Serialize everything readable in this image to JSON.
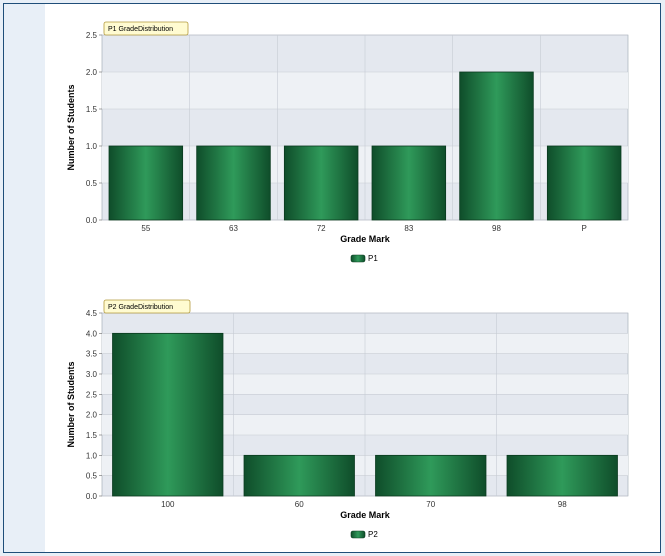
{
  "colors": {
    "plot_bg": "#e4e8ef",
    "band_light": "#eef1f5",
    "grid": "#c7ccd4",
    "bar_dark": "#0f4d2a",
    "bar_light": "#2f9a5a",
    "tab_bg": "#fffbd1",
    "tab_border": "#b49a3c"
  },
  "chart_data": [
    {
      "type": "bar",
      "title": "P1 GradeDistribution",
      "xlabel": "Grade Mark",
      "ylabel": "Number of Students",
      "categories": [
        "55",
        "63",
        "72",
        "83",
        "98",
        "P"
      ],
      "series": [
        {
          "name": "P1",
          "values": [
            1,
            1,
            1,
            1,
            2,
            1
          ]
        }
      ],
      "ylim": [
        0,
        2.5
      ],
      "yticks": [
        "0.0",
        "0.5",
        "1.0",
        "1.5",
        "2.0",
        "2.5"
      ],
      "grid": true,
      "legend": "bottom-center"
    },
    {
      "type": "bar",
      "title": "P2 GradeDistribution",
      "xlabel": "Grade Mark",
      "ylabel": "Number of Students",
      "categories": [
        "100",
        "60",
        "70",
        "98"
      ],
      "series": [
        {
          "name": "P2",
          "values": [
            4,
            1,
            1,
            1
          ]
        }
      ],
      "ylim": [
        0,
        4.5
      ],
      "yticks": [
        "0.0",
        "0.5",
        "1.0",
        "1.5",
        "2.0",
        "2.5",
        "3.0",
        "3.5",
        "4.0",
        "4.5"
      ],
      "grid": true,
      "legend": "bottom-center"
    }
  ]
}
